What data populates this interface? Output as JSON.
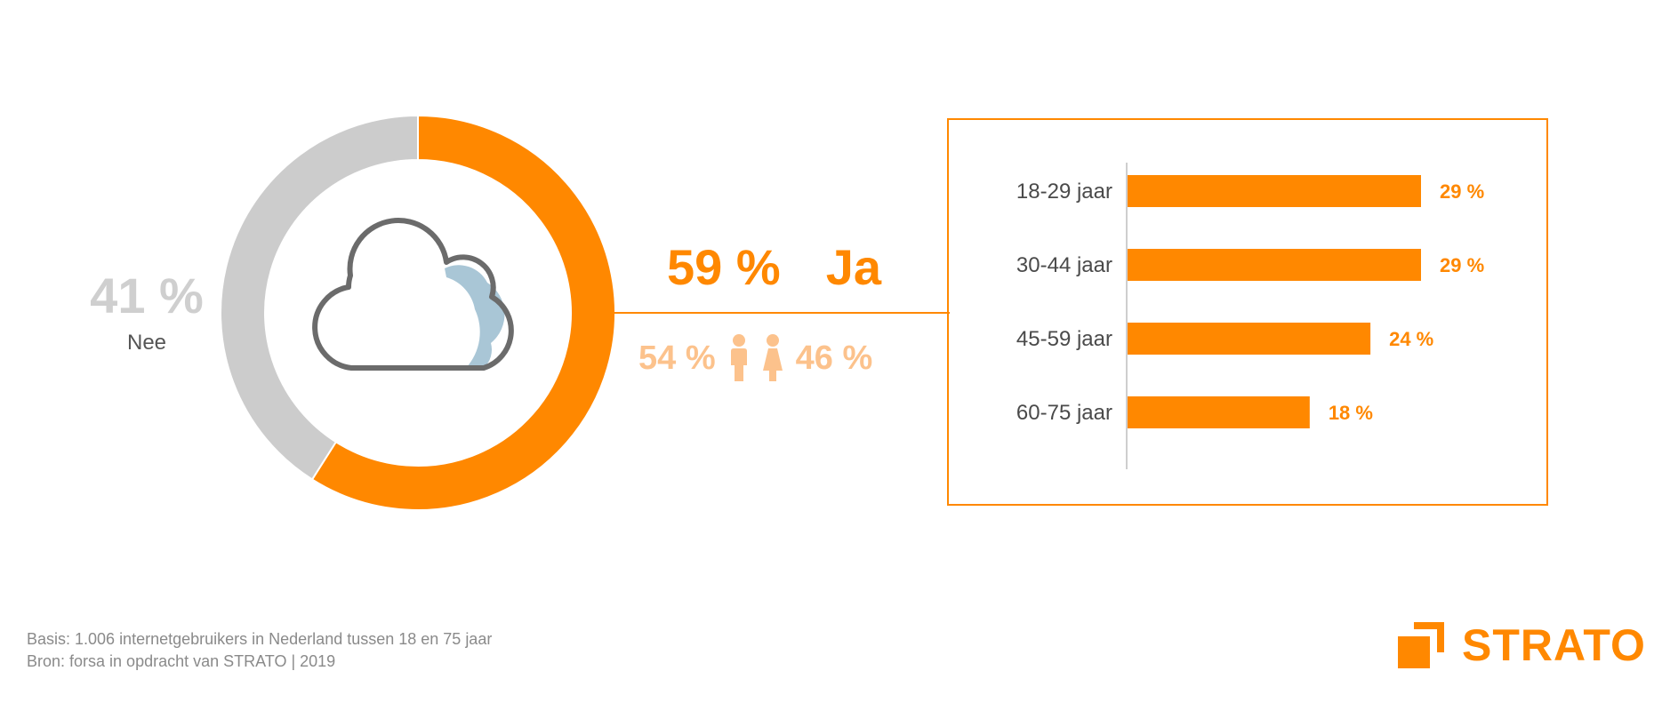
{
  "chart_data": [
    {
      "type": "pie",
      "variant": "donut",
      "slices": [
        {
          "label": "Ja",
          "value": 59,
          "display": "59 %",
          "color": "#ff8800"
        },
        {
          "label": "Nee",
          "value": 41,
          "display": "41 %",
          "color": "#cccccc"
        }
      ],
      "center_icon": "cloud-icon",
      "gender_split": {
        "male": {
          "display": "54 %",
          "value": 54,
          "icon": "male-person-icon"
        },
        "female": {
          "display": "46 %",
          "value": 46,
          "icon": "female-person-icon"
        }
      }
    },
    {
      "type": "bar",
      "orientation": "horizontal",
      "categories": [
        "18-29 jaar",
        "30-44 jaar",
        "45-59 jaar",
        "60-75 jaar"
      ],
      "values": [
        29,
        29,
        24,
        18
      ],
      "value_labels": [
        "29 %",
        "29 %",
        "24 %",
        "18 %"
      ],
      "color": "#ff8800",
      "xlim": [
        0,
        29
      ],
      "grid": false
    }
  ],
  "labels": {
    "yes_pct": "59 %",
    "yes_word": "Ja",
    "no_pct": "41 %",
    "no_word": "Nee",
    "male_pct": "54 %",
    "female_pct": "46 %"
  },
  "footnote": {
    "basis": "Basis: 1.006 internetgebruikers in Nederland tussen 18 en 75 jaar",
    "source": "Bron: forsa in opdracht van STRATO | 2019"
  },
  "logo": {
    "text": "STRATO",
    "icon": "strato-square-icon",
    "color": "#ff8800"
  }
}
